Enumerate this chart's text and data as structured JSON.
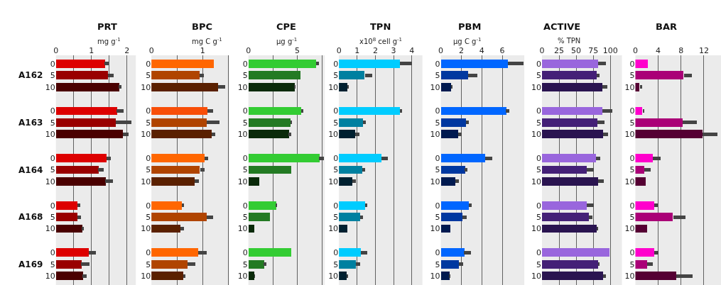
{
  "chart_data": [
    {
      "type": "bar",
      "orientation": "horizontal",
      "title": "PRT",
      "xlabel": "mg g$^{-1}$",
      "annotations": [
        "A162",
        "A163",
        "A164",
        "A168",
        "A169"
      ],
      "categories": [
        "0",
        "5",
        "10",
        "0",
        "5",
        "10",
        "0",
        "5",
        "10",
        "0",
        "5",
        "10",
        "0",
        "5",
        "10"
      ],
      "values": [
        1.37,
        1.46,
        1.77,
        1.71,
        1.68,
        1.88,
        1.42,
        1.19,
        1.39,
        0.6,
        0.6,
        0.73,
        0.92,
        0.71,
        0.75
      ],
      "errors": [
        [
          1.37,
          1.48
        ],
        [
          1.46,
          1.62
        ],
        [
          1.77,
          1.85
        ],
        [
          1.71,
          1.91
        ],
        [
          1.68,
          2.13
        ],
        [
          1.88,
          2.05
        ],
        [
          1.42,
          1.54
        ],
        [
          1.19,
          1.35
        ],
        [
          1.39,
          1.61
        ],
        [
          0.6,
          0.69
        ],
        [
          0.6,
          0.71
        ],
        [
          0.73,
          0.79
        ],
        [
          0.92,
          1.13
        ],
        [
          0.71,
          0.94
        ],
        [
          0.75,
          0.87
        ]
      ],
      "colors": [
        "#dd0000",
        "#990000",
        "#4a0000",
        "#dd0000",
        "#990000",
        "#4a0000",
        "#dd0000",
        "#990000",
        "#4a0000",
        "#dd0000",
        "#990000",
        "#4a0000",
        "#dd0000",
        "#990000",
        "#4a0000"
      ],
      "xlim": [
        0,
        2.25
      ],
      "xticks": [
        0,
        {
          "value": 0.5,
          "label": null
        },
        1,
        {
          "value": 1.5,
          "label": null
        },
        2
      ],
      "grid": "x",
      "legend": false
    },
    {
      "type": "bar",
      "orientation": "horizontal",
      "title": "BPC",
      "xlabel": "mg C g$^{-1}$",
      "categories": [
        "0",
        "5",
        "10",
        "0",
        "5",
        "10",
        "0",
        "5",
        "10",
        "0",
        "5",
        "10",
        "0",
        "5",
        "10"
      ],
      "values": [
        1.22,
        0.94,
        1.3,
        1.09,
        1.08,
        1.18,
        1.04,
        0.95,
        0.85,
        0.6,
        1.08,
        0.57,
        0.92,
        0.71,
        0.62
      ],
      "errors": [
        null,
        [
          0.94,
          1.02
        ],
        [
          1.3,
          1.44
        ],
        [
          1.09,
          1.21
        ],
        [
          1.08,
          1.33
        ],
        [
          1.18,
          1.24
        ],
        [
          1.04,
          1.11
        ],
        [
          0.95,
          1.04
        ],
        [
          0.85,
          0.93
        ],
        [
          0.6,
          0.64
        ],
        [
          1.08,
          1.21
        ],
        [
          0.57,
          0.63
        ],
        [
          0.92,
          1.08
        ],
        [
          0.71,
          0.86
        ],
        [
          0.62,
          0.67
        ]
      ],
      "colors": [
        "#ff6600",
        "#b04400",
        "#5a2000",
        "#f84e08",
        "#b04400",
        "#5a2000",
        "#ff6600",
        "#b04400",
        "#5a2000",
        "#ff6600",
        "#b04400",
        "#5a2000",
        "#ff6600",
        "#b04400",
        "#5a2000"
      ],
      "xlim": [
        0,
        1.52
      ],
      "xticks": [
        0,
        {
          "value": 0.5,
          "label": null
        },
        1,
        {
          "value": 1.5,
          "label": null
        }
      ],
      "grid": "x",
      "legend": false
    },
    {
      "type": "bar",
      "orientation": "horizontal",
      "title": "CPE",
      "xlabel": "µg g$^{-1}$",
      "categories": [
        "0",
        "5",
        "10",
        "0",
        "5",
        "10",
        "0",
        "5",
        "10",
        "0",
        "5",
        "10",
        "0",
        "5",
        "10"
      ],
      "values": [
        6.89,
        5.26,
        4.69,
        5.36,
        4.29,
        4.11,
        7.22,
        4.34,
        1.07,
        2.81,
        2.14,
        0.56,
        4.34,
        1.56,
        0.59
      ],
      "errors": [
        [
          6.89,
          7.19
        ],
        null,
        [
          4.69,
          4.8
        ],
        [
          5.36,
          5.61
        ],
        [
          4.29,
          4.44
        ],
        [
          4.11,
          4.36
        ],
        [
          7.22,
          7.73
        ],
        null,
        null,
        [
          2.81,
          2.93
        ],
        null,
        null,
        null,
        [
          1.56,
          1.84
        ],
        [
          0.59,
          0.71
        ]
      ],
      "colors": [
        "#33cc33",
        "#237a23",
        "#0a2a0a",
        "#33cc33",
        "#237a23",
        "#0a2a0a",
        "#33cc33",
        "#237a23",
        "#0a2a0a",
        "#33cc33",
        "#237a23",
        "#0a2a0a",
        "#33cc33",
        "#237a23",
        "#0a2a0a"
      ],
      "xlim": [
        0,
        7.8
      ],
      "xticks": [
        0,
        {
          "value": 2.5,
          "label": null
        },
        5,
        {
          "value": 7.5,
          "label": null
        }
      ],
      "grid": "x",
      "legend": false
    },
    {
      "type": "bar",
      "orientation": "horizontal",
      "title": "TPN",
      "xlabel": "x10$^{8}$ cell g$^{-1}$",
      "categories": [
        "0",
        "5",
        "10",
        "0",
        "5",
        "10",
        "0",
        "5",
        "10",
        "0",
        "5",
        "10",
        "0",
        "5",
        "10"
      ],
      "values": [
        3.35,
        1.42,
        0.48,
        3.35,
        1.33,
        0.88,
        2.35,
        1.29,
        0.75,
        1.45,
        1.15,
        0.45,
        1.2,
        0.93,
        0.43
      ],
      "errors": [
        [
          3.35,
          4.0
        ],
        [
          1.42,
          1.83
        ],
        [
          0.48,
          0.54
        ],
        [
          3.35,
          3.47
        ],
        [
          1.33,
          1.47
        ],
        [
          0.88,
          1.11
        ],
        [
          2.35,
          2.7
        ],
        [
          1.29,
          1.43
        ],
        [
          0.75,
          0.93
        ],
        [
          1.45,
          1.57
        ],
        [
          1.15,
          1.33
        ],
        null,
        [
          1.2,
          1.56
        ],
        [
          0.93,
          1.16
        ],
        [
          0.43,
          0.52
        ]
      ],
      "colors": [
        "#00ccff",
        "#0080a0",
        "#002030",
        "#00ccff",
        "#0080a0",
        "#002030",
        "#00ccff",
        "#0080a0",
        "#002030",
        "#00ccff",
        "#0080a0",
        "#002030",
        "#00ccff",
        "#0080a0",
        "#002030"
      ],
      "xlim": [
        0,
        4.58
      ],
      "xticks": [
        0,
        1,
        2,
        3,
        4
      ],
      "grid": "x",
      "legend": false
    },
    {
      "type": "bar",
      "orientation": "horizontal",
      "title": "PBM",
      "xlabel": "µg C g$^{-1}$",
      "categories": [
        "0",
        "5",
        "10",
        "0",
        "5",
        "10",
        "0",
        "5",
        "10",
        "0",
        "5",
        "10",
        "0",
        "5",
        "10"
      ],
      "values": [
        6.54,
        2.66,
        0.99,
        6.37,
        2.45,
        1.66,
        4.3,
        2.33,
        1.39,
        2.7,
        2.1,
        0.88,
        2.26,
        1.73,
        0.81
      ],
      "errors": [
        [
          6.54,
          8.08
        ],
        [
          2.66,
          3.6
        ],
        [
          0.99,
          1.13
        ],
        [
          6.37,
          6.7
        ],
        [
          2.45,
          2.7
        ],
        [
          1.66,
          2.06
        ],
        [
          4.3,
          5.01
        ],
        [
          2.33,
          2.59
        ],
        [
          1.39,
          1.78
        ],
        [
          2.7,
          3.03
        ],
        [
          2.1,
          2.52
        ],
        null,
        [
          2.26,
          2.96
        ],
        [
          1.73,
          2.15
        ],
        [
          0.81,
          0.92
        ]
      ],
      "colors": [
        "#0066ff",
        "#0038a0",
        "#001a50",
        "#0066ff",
        "#0038a0",
        "#001a50",
        "#0066ff",
        "#0038a0",
        "#001a50",
        "#0066ff",
        "#0038a0",
        "#001a50",
        "#0066ff",
        "#0038a0",
        "#001a50"
      ],
      "xlim": [
        0,
        8.15
      ],
      "xticks": [
        0,
        2,
        4,
        6
      ],
      "grid": "x",
      "legend": false
    },
    {
      "type": "bar",
      "orientation": "horizontal",
      "title": "ACTIVE",
      "xlabel": "% TPN",
      "categories": [
        "0",
        "5",
        "10",
        "0",
        "5",
        "10",
        "0",
        "5",
        "10",
        "0",
        "5",
        "10",
        "0",
        "5",
        "10"
      ],
      "values": [
        82,
        80,
        88,
        88,
        81,
        89,
        79,
        65,
        82,
        66,
        69,
        80,
        99,
        82,
        89
      ],
      "errors": [
        [
          82,
          94
        ],
        [
          80,
          84
        ],
        [
          88,
          96
        ],
        [
          88,
          103
        ],
        [
          81,
          92
        ],
        [
          89,
          97
        ],
        [
          79,
          85
        ],
        [
          65,
          76
        ],
        [
          82,
          90
        ],
        [
          66,
          76
        ],
        [
          69,
          74
        ],
        [
          80,
          82
        ],
        null,
        [
          82,
          84
        ],
        [
          89,
          94
        ]
      ],
      "colors": [
        "#9966dd",
        "#442077",
        "#2a1450",
        "#9966dd",
        "#442077",
        "#2a1450",
        "#9966dd",
        "#442077",
        "#2a1450",
        "#9966dd",
        "#442077",
        "#2a1450",
        "#9966dd",
        "#442077",
        "#2a1450"
      ],
      "xlim": [
        0,
        117
      ],
      "xticks": [
        0,
        25,
        50,
        75,
        100
      ],
      "grid": "x",
      "legend": false
    },
    {
      "type": "bar",
      "orientation": "horizontal",
      "title": "BAR",
      "categories": [
        "0",
        "5",
        "10",
        "0",
        "5",
        "10",
        "0",
        "5",
        "10",
        "0",
        "5",
        "10",
        "0",
        "5",
        "10"
      ],
      "values": [
        2.2,
        8.5,
        0.8,
        1.3,
        8.3,
        11.8,
        3.1,
        1.6,
        1.9,
        3.3,
        6.6,
        2.1,
        3.3,
        2.1,
        7.2
      ],
      "errors": [
        null,
        [
          8.5,
          9.9
        ],
        [
          0.8,
          1.2
        ],
        [
          1.3,
          1.5
        ],
        [
          8.3,
          10.8
        ],
        [
          11.8,
          14.4
        ],
        [
          3.1,
          4.4
        ],
        [
          1.6,
          2.7
        ],
        null,
        [
          3.3,
          3.9
        ],
        [
          6.6,
          8.8
        ],
        null,
        [
          3.3,
          4.0
        ],
        [
          2.1,
          3.0
        ],
        [
          7.2,
          10.0
        ]
      ],
      "colors": [
        "#ff00cc",
        "#aa0077",
        "#550033",
        "#ff00cc",
        "#aa0077",
        "#550033",
        "#ff00cc",
        "#aa0077",
        "#550033",
        "#ff00cc",
        "#aa0077",
        "#550033",
        "#ff00cc",
        "#aa0077",
        "#550033"
      ],
      "xlim": [
        0,
        15
      ],
      "xticks": [
        0,
        4,
        8,
        12
      ],
      "grid": "x",
      "legend": false
    }
  ]
}
